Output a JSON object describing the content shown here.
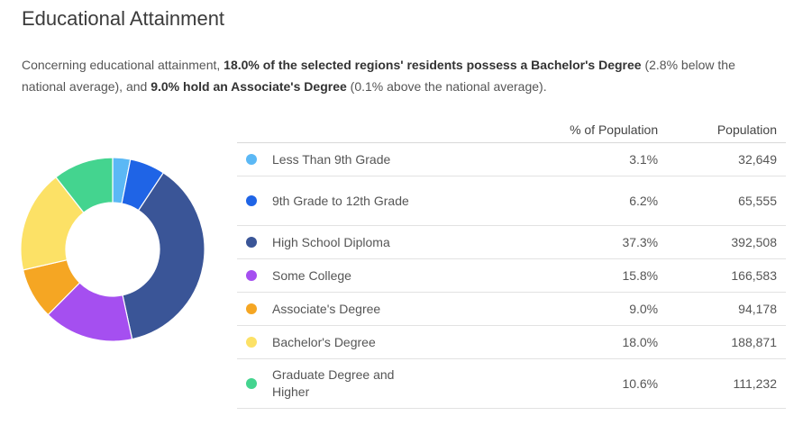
{
  "title": "Educational Attainment",
  "summary": {
    "p1": "Concerning educational attainment, ",
    "b1": "18.0% of the selected regions' residents possess a Bachelor's Degree",
    "p2": " (2.8% below the national average), and ",
    "b2": "9.0% hold an Associate's Degree",
    "p3": " (0.1% above the national average)."
  },
  "table": {
    "col_pct": "% of Population",
    "col_pop": "Population",
    "rows": [
      {
        "label": "Less Than 9th Grade",
        "pct": "3.1%",
        "pop": "32,649",
        "color": "#5bb8f5"
      },
      {
        "label": "9th Grade to 12th Grade",
        "pct": "6.2%",
        "pop": "65,555",
        "color": "#1f64e6"
      },
      {
        "label": "High School Diploma",
        "pct": "37.3%",
        "pop": "392,508",
        "color": "#3a5597"
      },
      {
        "label": "Some College",
        "pct": "15.8%",
        "pop": "166,583",
        "color": "#a54ff0"
      },
      {
        "label": "Associate's Degree",
        "pct": "9.0%",
        "pop": "94,178",
        "color": "#f5a623"
      },
      {
        "label": "Bachelor's Degree",
        "pct": "18.0%",
        "pop": "188,871",
        "color": "#fce166"
      },
      {
        "label": "Graduate Degree and Higher",
        "pct": "10.6%",
        "pop": "111,232",
        "color": "#44d48f"
      }
    ]
  },
  "chart_data": {
    "type": "pie",
    "title": "",
    "categories": [
      "Less Than 9th Grade",
      "9th Grade to 12th Grade",
      "High School Diploma",
      "Some College",
      "Associate's Degree",
      "Bachelor's Degree",
      "Graduate Degree and Higher"
    ],
    "values": [
      3.1,
      6.2,
      37.3,
      15.8,
      9.0,
      18.0,
      10.6
    ],
    "colors": [
      "#5bb8f5",
      "#1f64e6",
      "#3a5597",
      "#a54ff0",
      "#f5a623",
      "#fce166",
      "#44d48f"
    ],
    "donut": true
  }
}
